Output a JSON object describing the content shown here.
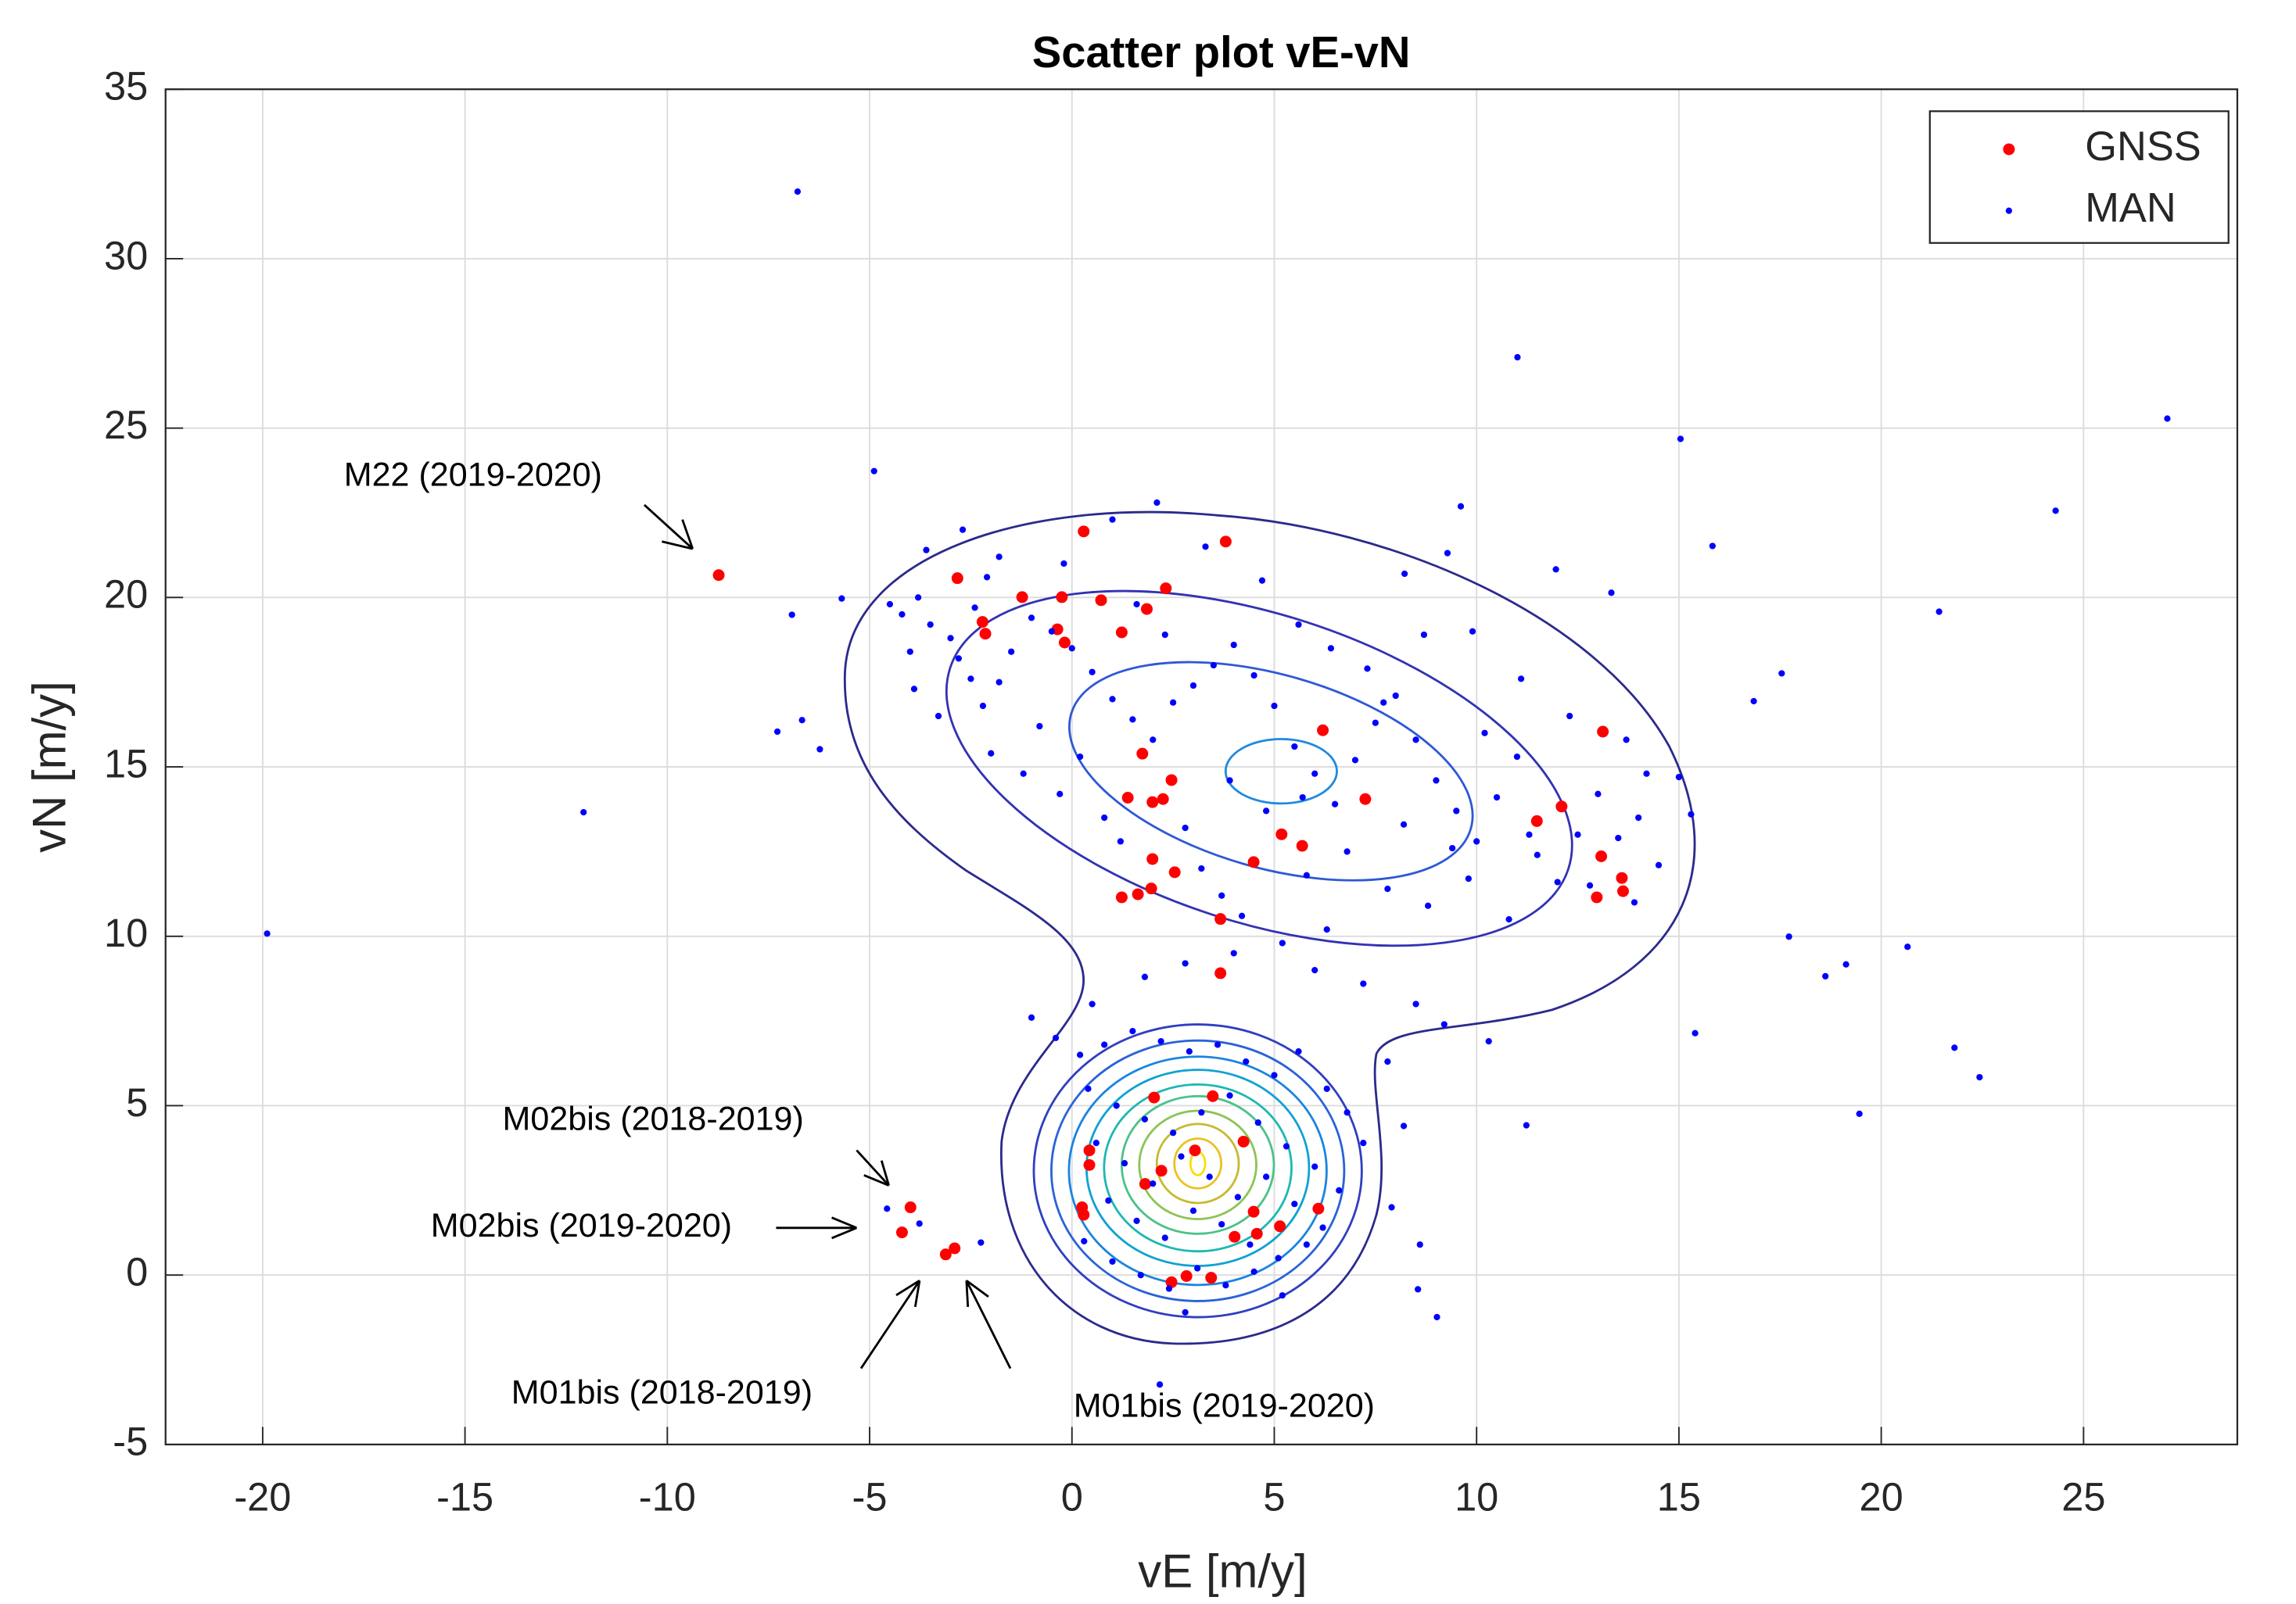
{
  "chart_data": {
    "type": "scatter",
    "title": "Scatter plot vE-vN",
    "x_label": "vE [m/y]",
    "y_label": "vN [m/y]",
    "xlim": [
      -22.4,
      28.8
    ],
    "ylim": [
      -5,
      35
    ],
    "xticks": [
      -20,
      -15,
      -10,
      -5,
      0,
      5,
      10,
      15,
      20,
      25
    ],
    "yticks": [
      -5,
      0,
      5,
      10,
      15,
      20,
      25,
      30,
      35
    ],
    "grid": true,
    "legend": "upper right",
    "annotations": [
      "M22 (2019-2020)",
      "M02bis (2018-2019)",
      "M02bis (2019-2020)",
      "M01bis (2018-2019)",
      "M01bis (2019-2020)"
    ],
    "series": [
      {
        "name": "GNSS",
        "color": "#ff0000",
        "x": [
          -8.73,
          -2.83,
          0.29,
          3.8,
          -2.21,
          -2.14,
          -1.23,
          -0.25,
          -0.36,
          -0.18,
          0.72,
          1.23,
          1.85,
          2.32,
          6.2,
          13.12,
          1.74,
          1.38,
          1.99,
          2.25,
          2.46,
          7.25,
          5.18,
          4.49,
          5.69,
          1.99,
          2.54,
          1.96,
          1.63,
          1.23,
          3.67,
          3.67,
          11.49,
          12.1,
          13.08,
          12.97,
          13.59,
          13.62,
          2.03,
          3.48,
          0.43,
          0.43,
          3.04,
          4.24,
          2.21,
          1.81,
          0.25,
          0.29,
          4.49,
          6.09,
          5.14,
          4.57,
          4.02,
          2.83,
          2.46,
          3.44,
          -3.99,
          -4.2,
          -3.12,
          -2.9
        ],
        "y": [
          20.66,
          20.57,
          21.95,
          21.65,
          19.28,
          18.93,
          20.01,
          20.01,
          19.06,
          18.67,
          19.92,
          18.97,
          19.66,
          20.27,
          16.08,
          16.04,
          15.39,
          14.09,
          13.96,
          14.05,
          14.61,
          14.05,
          13.01,
          12.19,
          12.67,
          12.28,
          11.89,
          11.41,
          11.24,
          11.15,
          10.51,
          8.91,
          13.4,
          13.83,
          12.36,
          11.15,
          11.72,
          11.33,
          5.24,
          5.28,
          3.68,
          3.25,
          3.68,
          3.94,
          3.08,
          2.69,
          2.0,
          1.78,
          1.87,
          1.96,
          1.44,
          1.22,
          1.13,
          -0.03,
          -0.21,
          -0.08,
          2.0,
          1.26,
          0.61,
          0.79
        ]
      },
      {
        "name": "MAN",
        "color": "#0000ff",
        "x": [
          -19.89,
          -12.07,
          -6.78,
          11.01,
          27.07,
          24.31,
          15.04,
          15.83,
          21.81,
          22.43,
          19.46,
          20.65,
          17.72,
          18.62,
          19.13,
          17.54,
          16.85,
          21.43,
          15.4,
          11.23,
          9.02,
          8.55,
          2.17,
          -4.89,
          -5.69,
          -6.92,
          -6.67,
          -6.23,
          -7.28,
          -4.57,
          -3.77,
          -2.25,
          9.28,
          9.61,
          8.22,
          11.96,
          13.33,
          -4.5,
          -4.2,
          -3.8,
          -3.5,
          -3.0,
          -2.8,
          -2.5,
          -2.2,
          -1.8,
          -1.5,
          -1.0,
          -0.5,
          0,
          0.5,
          1.0,
          1.5,
          2.0,
          2.5,
          3.0,
          3.5,
          4.0,
          4.5,
          5.0,
          5.5,
          6.0,
          6.5,
          7.0,
          7.5,
          8.0,
          8.5,
          9.0,
          9.5,
          10.0,
          10.5,
          11.0,
          11.5,
          12.0,
          12.5,
          13.0,
          13.5,
          14.0,
          14.5,
          15.0,
          15.3,
          -3.9,
          -3.3,
          -2.0,
          -1.2,
          -0.3,
          0.8,
          1.2,
          2.8,
          3.2,
          3.7,
          4.2,
          5.8,
          6.8,
          7.8,
          8.8,
          9.8,
          10.8,
          6.3,
          5.2,
          4.0,
          2.8,
          1.8,
          0.5,
          -1.0,
          -0.4,
          8.5,
          9.2,
          10.3,
          7.2,
          6.0,
          3.3,
          1.0,
          -0.2,
          -1.8,
          -2.7,
          2.1,
          4.7,
          5.6,
          6.4,
          7.3,
          8.7,
          9.9,
          11.1,
          12.3,
          13.7,
          14.2,
          -0.8,
          0.2,
          3.9,
          4.8,
          5.7,
          8.2,
          9.4,
          11.3,
          12.8,
          13.9,
          10.2,
          7.7,
          2.3,
          1.6,
          -2.4,
          -4.0,
          -3.6,
          -2.1,
          0.2,
          0.8,
          1.5,
          2.2,
          2.9,
          3.6,
          4.3,
          5.0,
          5.6,
          6.3,
          6.8,
          7.2,
          0.4,
          1.1,
          1.8,
          2.5,
          3.2,
          3.9,
          4.6,
          5.3,
          6.0,
          6.6,
          0.6,
          1.3,
          2.0,
          2.7,
          3.4,
          4.1,
          4.8,
          5.5,
          6.2,
          0.9,
          1.6,
          2.3,
          3.0,
          3.7,
          4.4,
          5.1,
          5.8,
          0.3,
          1.0,
          1.7,
          2.4,
          3.1,
          3.8,
          4.5,
          5.2,
          2.8,
          7.8,
          8.2,
          7.9,
          8.6
        ],
        "y": [
          10.08,
          13.66,
          31.98,
          27.09,
          25.28,
          22.56,
          24.68,
          21.52,
          6.71,
          5.84,
          4.76,
          9.69,
          9.99,
          8.82,
          9.17,
          17.76,
          16.94,
          19.58,
          7.14,
          4.42,
          -1.24,
          -0.42,
          -3.23,
          23.73,
          19.97,
          19.49,
          16.38,
          15.52,
          16.04,
          1.96,
          1.52,
          0.96,
          21.31,
          22.69,
          20.7,
          20.83,
          20.14,
          19.8,
          19.5,
          20.0,
          19.2,
          18.8,
          18.2,
          17.6,
          16.8,
          17.5,
          18.4,
          19.4,
          19.0,
          18.5,
          17.8,
          17.0,
          16.4,
          15.8,
          16.9,
          17.4,
          18.0,
          18.6,
          17.7,
          16.8,
          15.6,
          14.8,
          13.9,
          15.2,
          16.3,
          17.1,
          15.8,
          14.6,
          13.7,
          12.8,
          14.1,
          15.3,
          12.4,
          11.6,
          13.0,
          14.2,
          12.9,
          13.5,
          12.1,
          14.7,
          13.6,
          17.3,
          16.5,
          15.4,
          14.8,
          14.2,
          13.5,
          12.8,
          13.2,
          12.0,
          11.2,
          10.6,
          11.8,
          12.5,
          11.4,
          10.9,
          11.7,
          10.5,
          10.2,
          9.8,
          9.5,
          9.2,
          8.8,
          8.0,
          7.6,
          7.0,
          8.0,
          7.4,
          6.9,
          8.6,
          9.0,
          21.5,
          22.3,
          21.0,
          21.2,
          22.0,
          22.8,
          20.5,
          19.2,
          18.5,
          17.9,
          18.9,
          19.0,
          17.6,
          16.5,
          15.8,
          14.8,
          16.2,
          15.3,
          14.6,
          13.7,
          14.1,
          13.3,
          12.6,
          13.0,
          11.5,
          11.0,
          16.0,
          16.9,
          18.9,
          19.8,
          19.7,
          18.4,
          21.4,
          20.6,
          6.5,
          6.8,
          7.2,
          6.9,
          6.6,
          6.8,
          6.3,
          5.9,
          6.6,
          5.5,
          4.8,
          3.9,
          5.5,
          5.0,
          4.6,
          4.2,
          4.8,
          5.3,
          4.5,
          3.8,
          3.2,
          2.5,
          3.9,
          3.3,
          2.7,
          3.5,
          2.9,
          2.3,
          2.9,
          2.1,
          1.4,
          2.2,
          1.6,
          1.1,
          1.9,
          1.5,
          0.9,
          0.5,
          0.9,
          1.0,
          0.4,
          0.0,
          -0.4,
          0.2,
          -0.3,
          0.1,
          -0.6,
          -1.1,
          6.3,
          4.4,
          2.0,
          0.9
        ]
      }
    ]
  }
}
